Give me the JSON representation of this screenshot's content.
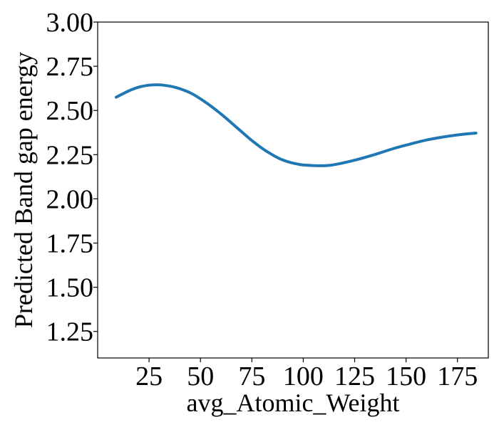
{
  "chart_data": {
    "type": "line",
    "title": "",
    "xlabel": "avg_Atomic_Weight",
    "ylabel": "Predicted Band gap energy",
    "xlim": [
      0,
      190
    ],
    "ylim": [
      1.1,
      3.0
    ],
    "x_ticks": [
      25,
      50,
      75,
      100,
      125,
      150,
      175
    ],
    "y_ticks": [
      1.25,
      1.5,
      1.75,
      2.0,
      2.25,
      2.5,
      2.75,
      3.0
    ],
    "x_tick_labels": [
      "25",
      "50",
      "75",
      "100",
      "125",
      "150",
      "175"
    ],
    "y_tick_labels": [
      "1.25",
      "1.50",
      "1.75",
      "2.00",
      "2.25",
      "2.50",
      "2.75",
      "3.00"
    ],
    "grid": false,
    "series": [
      {
        "color": "#1f77b4",
        "x": [
          9,
          15,
          20,
          25,
          28,
          32,
          38,
          45,
          52,
          60,
          68,
          75,
          82,
          90,
          98,
          106,
          113,
          120,
          128,
          136,
          144,
          152,
          160,
          168,
          176,
          184
        ],
        "y": [
          2.575,
          2.61,
          2.632,
          2.643,
          2.645,
          2.643,
          2.63,
          2.6,
          2.55,
          2.48,
          2.4,
          2.33,
          2.27,
          2.22,
          2.195,
          2.188,
          2.19,
          2.205,
          2.228,
          2.255,
          2.285,
          2.31,
          2.333,
          2.35,
          2.363,
          2.372
        ]
      }
    ]
  }
}
